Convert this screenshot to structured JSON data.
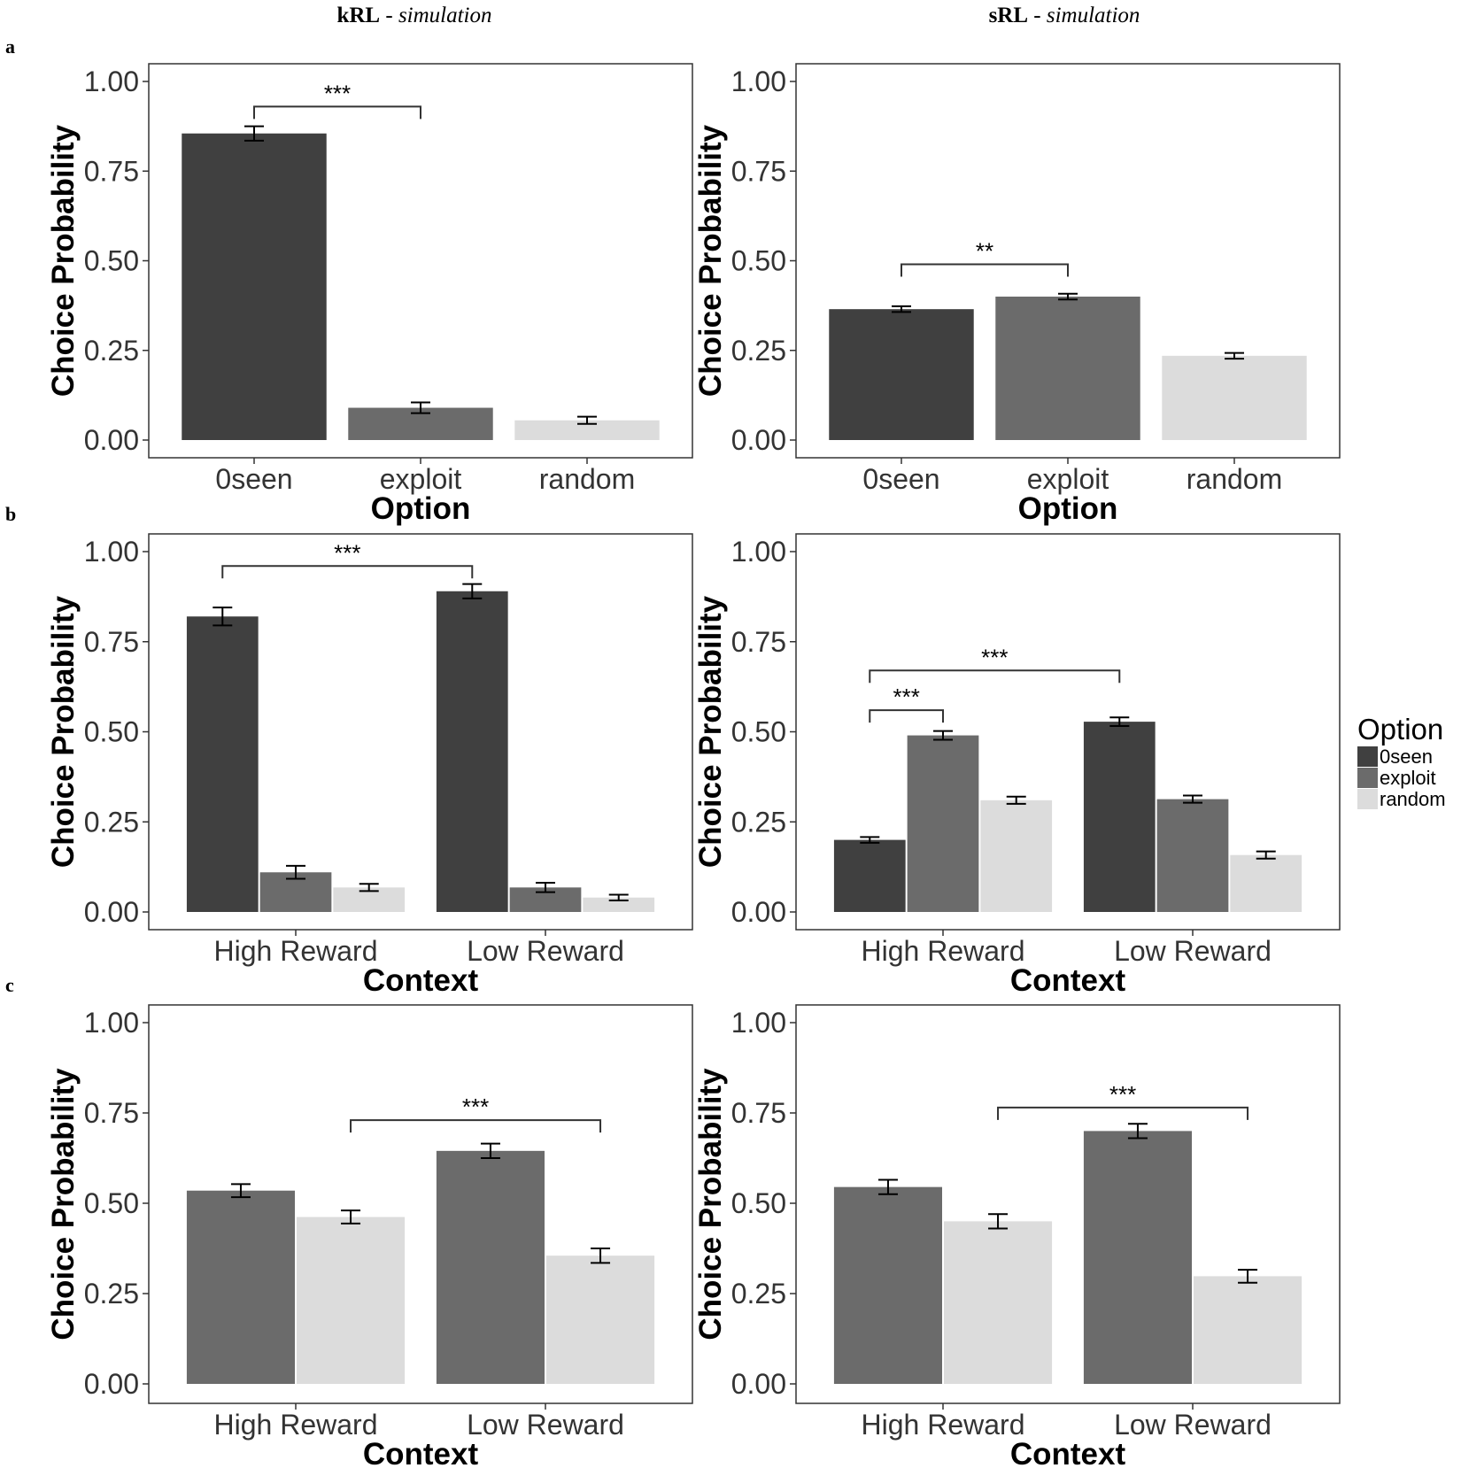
{
  "columns": [
    {
      "bold": "kRL",
      "sep": " - ",
      "italic": "simulation"
    },
    {
      "bold": "sRL",
      "sep": " - ",
      "italic": "simulation"
    }
  ],
  "row_labels": [
    "a",
    "b",
    "c"
  ],
  "colors": {
    "0seen": "#404040",
    "exploit": "#6b6b6b",
    "random": "#dcdcdc"
  },
  "legend": {
    "title": "Option",
    "items": [
      "0seen",
      "exploit",
      "random"
    ]
  },
  "chart_data": [
    {
      "type": "bar",
      "panel": "a-kRL",
      "ylabel": "Choice Probability",
      "xlabel": "Option",
      "ylim": [
        0,
        1
      ],
      "yticks": [
        "0.00",
        "0.25",
        "0.50",
        "0.75",
        "1.00"
      ],
      "categories": [
        "0seen",
        "exploit",
        "random"
      ],
      "series": [
        {
          "values": [
            0.855,
            0.09,
            0.055
          ],
          "errors": [
            0.02,
            0.015,
            0.01
          ]
        }
      ],
      "significance": [
        {
          "from": [
            0,
            0
          ],
          "to": [
            1,
            0
          ],
          "y": 0.93,
          "label": "***"
        }
      ]
    },
    {
      "type": "bar",
      "panel": "a-sRL",
      "ylabel": "Choice Probability",
      "xlabel": "Option",
      "ylim": [
        0,
        1
      ],
      "yticks": [
        "0.00",
        "0.25",
        "0.50",
        "0.75",
        "1.00"
      ],
      "categories": [
        "0seen",
        "exploit",
        "random"
      ],
      "series": [
        {
          "values": [
            0.365,
            0.4,
            0.235
          ],
          "errors": [
            0.008,
            0.008,
            0.008
          ]
        }
      ],
      "significance": [
        {
          "from": [
            0,
            0
          ],
          "to": [
            1,
            0
          ],
          "y": 0.49,
          "label": "**"
        }
      ]
    },
    {
      "type": "bar",
      "panel": "b-kRL",
      "ylabel": "Choice Probability",
      "xlabel": "Context",
      "ylim": [
        0,
        1
      ],
      "yticks": [
        "0.00",
        "0.25",
        "0.50",
        "0.75",
        "1.00"
      ],
      "categories": [
        "High Reward",
        "Low Reward"
      ],
      "series": [
        {
          "name": "0seen",
          "values": [
            0.82,
            0.89
          ],
          "errors": [
            0.025,
            0.02
          ]
        },
        {
          "name": "exploit",
          "values": [
            0.11,
            0.068
          ],
          "errors": [
            0.018,
            0.013
          ]
        },
        {
          "name": "random",
          "values": [
            0.068,
            0.04
          ],
          "errors": [
            0.01,
            0.008
          ]
        }
      ],
      "significance": [
        {
          "from": [
            0,
            0
          ],
          "to": [
            1,
            0
          ],
          "y": 0.96,
          "label": "***"
        }
      ]
    },
    {
      "type": "bar",
      "panel": "b-sRL",
      "ylabel": "Choice Probability",
      "xlabel": "Context",
      "ylim": [
        0,
        1
      ],
      "yticks": [
        "0.00",
        "0.25",
        "0.50",
        "0.75",
        "1.00"
      ],
      "categories": [
        "High Reward",
        "Low Reward"
      ],
      "series": [
        {
          "name": "0seen",
          "values": [
            0.2,
            0.528
          ],
          "errors": [
            0.008,
            0.012
          ]
        },
        {
          "name": "exploit",
          "values": [
            0.49,
            0.313
          ],
          "errors": [
            0.012,
            0.01
          ]
        },
        {
          "name": "random",
          "values": [
            0.31,
            0.158
          ],
          "errors": [
            0.01,
            0.01
          ]
        }
      ],
      "significance": [
        {
          "from": [
            0,
            0
          ],
          "to": [
            1,
            0
          ],
          "y": 0.67,
          "label": "***"
        },
        {
          "from": [
            0,
            0
          ],
          "to": [
            0,
            1
          ],
          "y": 0.56,
          "label": "***"
        }
      ]
    },
    {
      "type": "bar",
      "panel": "c-kRL",
      "ylabel": "Choice Probability",
      "xlabel": "Context",
      "ylim": [
        0,
        1
      ],
      "yticks": [
        "0.00",
        "0.25",
        "0.50",
        "0.75",
        "1.00"
      ],
      "categories": [
        "High Reward",
        "Low Reward"
      ],
      "series": [
        {
          "name": "exploit",
          "values": [
            0.535,
            0.645
          ],
          "errors": [
            0.018,
            0.02
          ]
        },
        {
          "name": "random",
          "values": [
            0.462,
            0.355
          ],
          "errors": [
            0.018,
            0.02
          ]
        }
      ],
      "significance": [
        {
          "from": [
            0,
            1
          ],
          "to": [
            1,
            1
          ],
          "y": 0.73,
          "label": "***"
        }
      ]
    },
    {
      "type": "bar",
      "panel": "c-sRL",
      "ylabel": "Choice Probability",
      "xlabel": "Context",
      "ylim": [
        0,
        1
      ],
      "yticks": [
        "0.00",
        "0.25",
        "0.50",
        "0.75",
        "1.00"
      ],
      "categories": [
        "High Reward",
        "Low Reward"
      ],
      "series": [
        {
          "name": "exploit",
          "values": [
            0.545,
            0.7
          ],
          "errors": [
            0.02,
            0.02
          ]
        },
        {
          "name": "random",
          "values": [
            0.45,
            0.298
          ],
          "errors": [
            0.02,
            0.018
          ]
        }
      ],
      "significance": [
        {
          "from": [
            0,
            1
          ],
          "to": [
            1,
            1
          ],
          "y": 0.765,
          "label": "***"
        }
      ]
    }
  ]
}
